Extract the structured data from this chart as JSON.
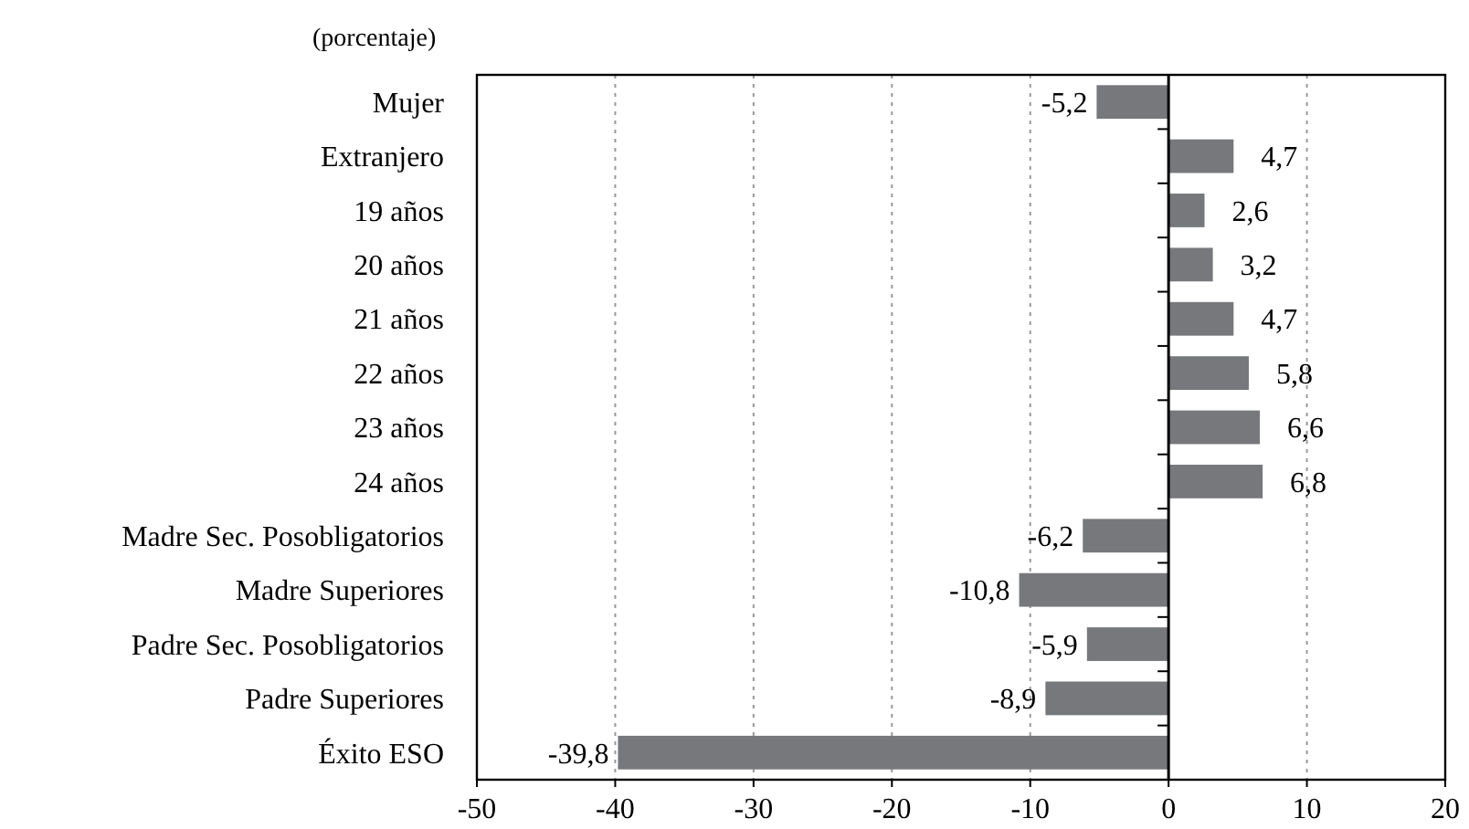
{
  "chart_data": {
    "type": "bar",
    "orientation": "horizontal",
    "subtitle": "(porcentaje)",
    "categories": [
      "Mujer",
      "Extranjero",
      "19 años",
      "20 años",
      "21 años",
      "22 años",
      "23 años",
      "24 años",
      "Madre Sec. Posobligatorios",
      "Madre Superiores",
      "Padre Sec. Posobligatorios",
      "Padre Superiores",
      "Éxito ESO"
    ],
    "values": [
      -5.2,
      4.7,
      2.6,
      3.2,
      4.7,
      5.8,
      6.6,
      6.8,
      -6.2,
      -10.8,
      -5.9,
      -8.9,
      -39.8
    ],
    "value_labels": [
      "-5,2",
      "4,7",
      "2,6",
      "3,2",
      "4,7",
      "5,8",
      "6,6",
      "6,8",
      "-6,2",
      "-10,8",
      "-5,9",
      "-8,9",
      "-39,8"
    ],
    "color": "#77787b",
    "xlim": [
      -50,
      20
    ],
    "xticks": [
      -50,
      -40,
      -30,
      -20,
      -10,
      0,
      10,
      20
    ],
    "grid": "x"
  }
}
